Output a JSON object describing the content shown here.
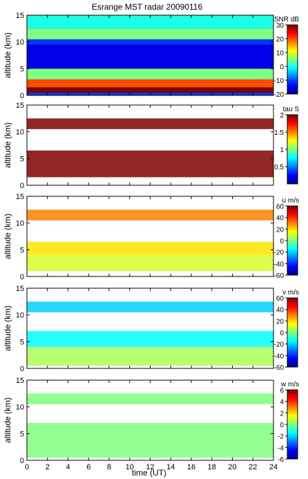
{
  "title": "Esrange MST radar 20090116",
  "xlabel": "time (UT)",
  "chart_data": [
    {
      "type": "heatmap",
      "ylabel": "altitude (km)",
      "xlim": [
        0,
        24
      ],
      "ylim": [
        0,
        15
      ],
      "x_ticks": [
        0,
        2,
        4,
        6,
        8,
        10,
        12,
        14,
        16,
        18,
        20,
        22,
        24
      ],
      "y_ticks": [
        0,
        5,
        10,
        15
      ],
      "colorbar": {
        "label": "SNR dB",
        "range": [
          -20,
          30
        ],
        "ticks": [
          -20,
          -10,
          0,
          10,
          20,
          30
        ]
      },
      "layers": [
        {
          "alt_km": [
            0.5,
            1.5
          ],
          "value": 30
        },
        {
          "alt_km": [
            1.5,
            3.0
          ],
          "value": 20
        },
        {
          "alt_km": [
            3.0,
            5.0
          ],
          "value": 5
        },
        {
          "alt_km": [
            5.0,
            9.5
          ],
          "value": -15
        },
        {
          "alt_km": [
            10.5,
            12.5
          ],
          "value": 5
        },
        {
          "alt_km": [
            12.5,
            15.0
          ],
          "value": 0
        }
      ]
    },
    {
      "type": "heatmap",
      "ylabel": "altitude (km)",
      "xlim": [
        0,
        24
      ],
      "ylim": [
        0,
        15
      ],
      "x_ticks": [
        0,
        2,
        4,
        6,
        8,
        10,
        12,
        14,
        16,
        18,
        20,
        22,
        24
      ],
      "y_ticks": [
        0,
        5,
        10,
        15
      ],
      "colorbar": {
        "label": "tau S",
        "range": [
          0,
          2
        ],
        "ticks": [
          0.5,
          1,
          1.5,
          2
        ]
      },
      "layers": [
        {
          "alt_km": [
            10.5,
            12.5
          ],
          "value": 2.0
        },
        {
          "alt_km": [
            1.5,
            6.5
          ],
          "value": 2.0
        }
      ]
    },
    {
      "type": "heatmap",
      "ylabel": "altitude (km)",
      "xlim": [
        0,
        24
      ],
      "ylim": [
        0,
        15
      ],
      "x_ticks": [
        0,
        2,
        4,
        6,
        8,
        10,
        12,
        14,
        16,
        18,
        20,
        22,
        24
      ],
      "y_ticks": [
        0,
        5,
        10,
        15
      ],
      "colorbar": {
        "label": "u m/s",
        "range": [
          -60,
          60
        ],
        "ticks": [
          -60,
          -40,
          -20,
          0,
          20,
          40,
          60
        ]
      },
      "layers": [
        {
          "alt_km": [
            10.5,
            12.5
          ],
          "value": 30
        },
        {
          "alt_km": [
            4.0,
            6.5
          ],
          "value": 18
        },
        {
          "alt_km": [
            1.0,
            4.0
          ],
          "value": 10
        }
      ]
    },
    {
      "type": "heatmap",
      "ylabel": "altitude (km)",
      "xlim": [
        0,
        24
      ],
      "ylim": [
        0,
        15
      ],
      "x_ticks": [
        0,
        2,
        4,
        6,
        8,
        10,
        12,
        14,
        16,
        18,
        20,
        22,
        24
      ],
      "y_ticks": [
        0,
        5,
        10,
        15
      ],
      "colorbar": {
        "label": "v m/s",
        "range": [
          -60,
          60
        ],
        "ticks": [
          -60,
          -40,
          -20,
          0,
          20,
          40,
          60
        ]
      },
      "layers": [
        {
          "alt_km": [
            10.5,
            12.5
          ],
          "value": -20
        },
        {
          "alt_km": [
            4.0,
            7.0
          ],
          "value": -15
        },
        {
          "alt_km": [
            0.5,
            4.0
          ],
          "value": 5
        }
      ]
    },
    {
      "type": "heatmap",
      "ylabel": "altitude (km)",
      "xlim": [
        0,
        24
      ],
      "ylim": [
        0,
        15
      ],
      "x_ticks": [
        0,
        2,
        4,
        6,
        8,
        10,
        12,
        14,
        16,
        18,
        20,
        22,
        24
      ],
      "y_ticks": [
        0,
        5,
        10,
        15
      ],
      "colorbar": {
        "label": "w m/s",
        "range": [
          -6,
          6
        ],
        "ticks": [
          -6,
          -4,
          -2,
          0,
          2,
          4,
          6
        ]
      },
      "layers": [
        {
          "alt_km": [
            10.5,
            12.5
          ],
          "value": 0
        },
        {
          "alt_km": [
            0.5,
            7.0
          ],
          "value": 0
        }
      ]
    }
  ]
}
